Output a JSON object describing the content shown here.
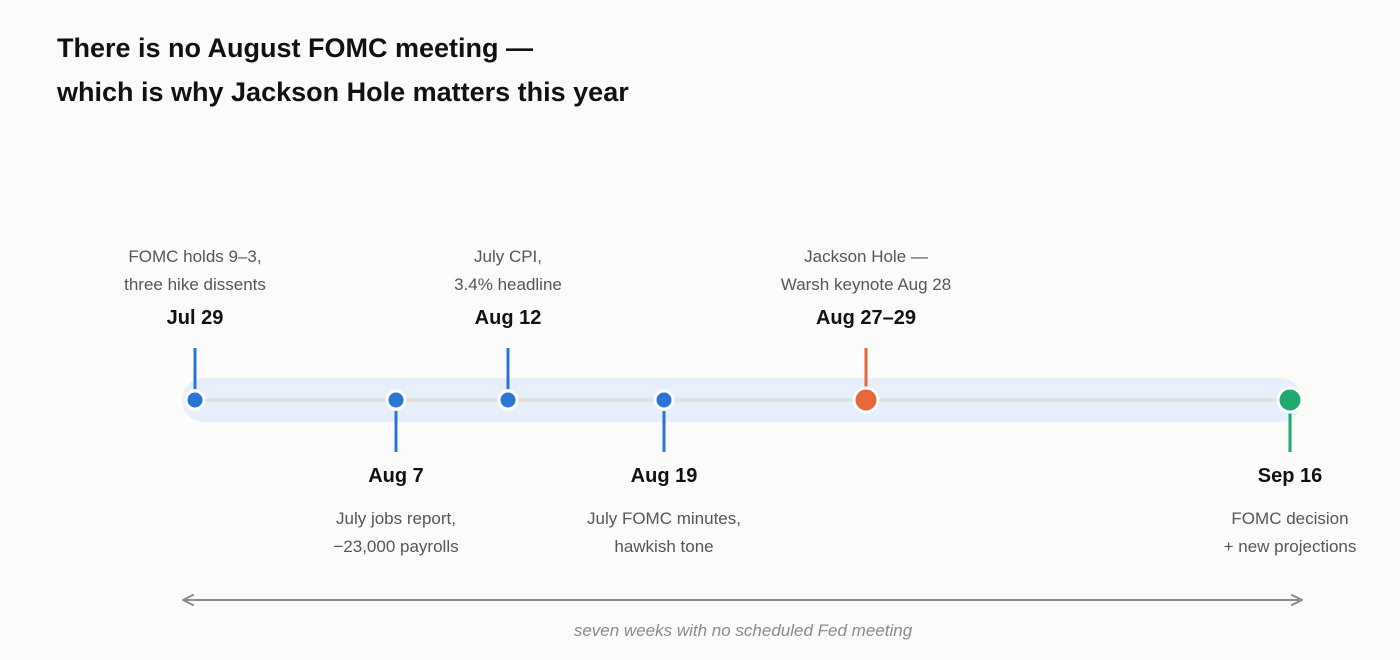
{
  "title": {
    "line1": "There is no August FOMC meeting —",
    "line2": "which is why Jackson Hole matters this year"
  },
  "colors": {
    "band": "#e8effc",
    "axis": "#e2e2e6",
    "event_blue": "#2a74d4",
    "event_orange": "#e8673a",
    "event_green": "#1fa870",
    "span_arrow": "#8a8a8a"
  },
  "events": [
    {
      "date": "Jul 29",
      "lines": [
        "FOMC holds 9–3,",
        "three hike dissents"
      ],
      "position": "above",
      "color": "#2a74d4",
      "major": false
    },
    {
      "date": "Aug 7",
      "lines": [
        "July jobs report,",
        "−23,000 payrolls"
      ],
      "position": "below",
      "color": "#2a74d4",
      "major": false
    },
    {
      "date": "Aug 12",
      "lines": [
        "July CPI,",
        "3.4% headline"
      ],
      "position": "above",
      "color": "#2a74d4",
      "major": false
    },
    {
      "date": "Aug 19",
      "lines": [
        "July FOMC minutes,",
        "hawkish tone"
      ],
      "position": "below",
      "color": "#2a74d4",
      "major": false
    },
    {
      "date": "Aug 27–29",
      "lines": [
        "Jackson Hole —",
        "Warsh keynote Aug 28"
      ],
      "position": "above",
      "color": "#e8673a",
      "major": true
    },
    {
      "date": "Sep 16",
      "lines": [
        "FOMC decision",
        "+ new projections"
      ],
      "position": "below",
      "color": "#1fa870",
      "major": true
    }
  ],
  "span": {
    "label": "seven weeks with no scheduled Fed meeting"
  }
}
